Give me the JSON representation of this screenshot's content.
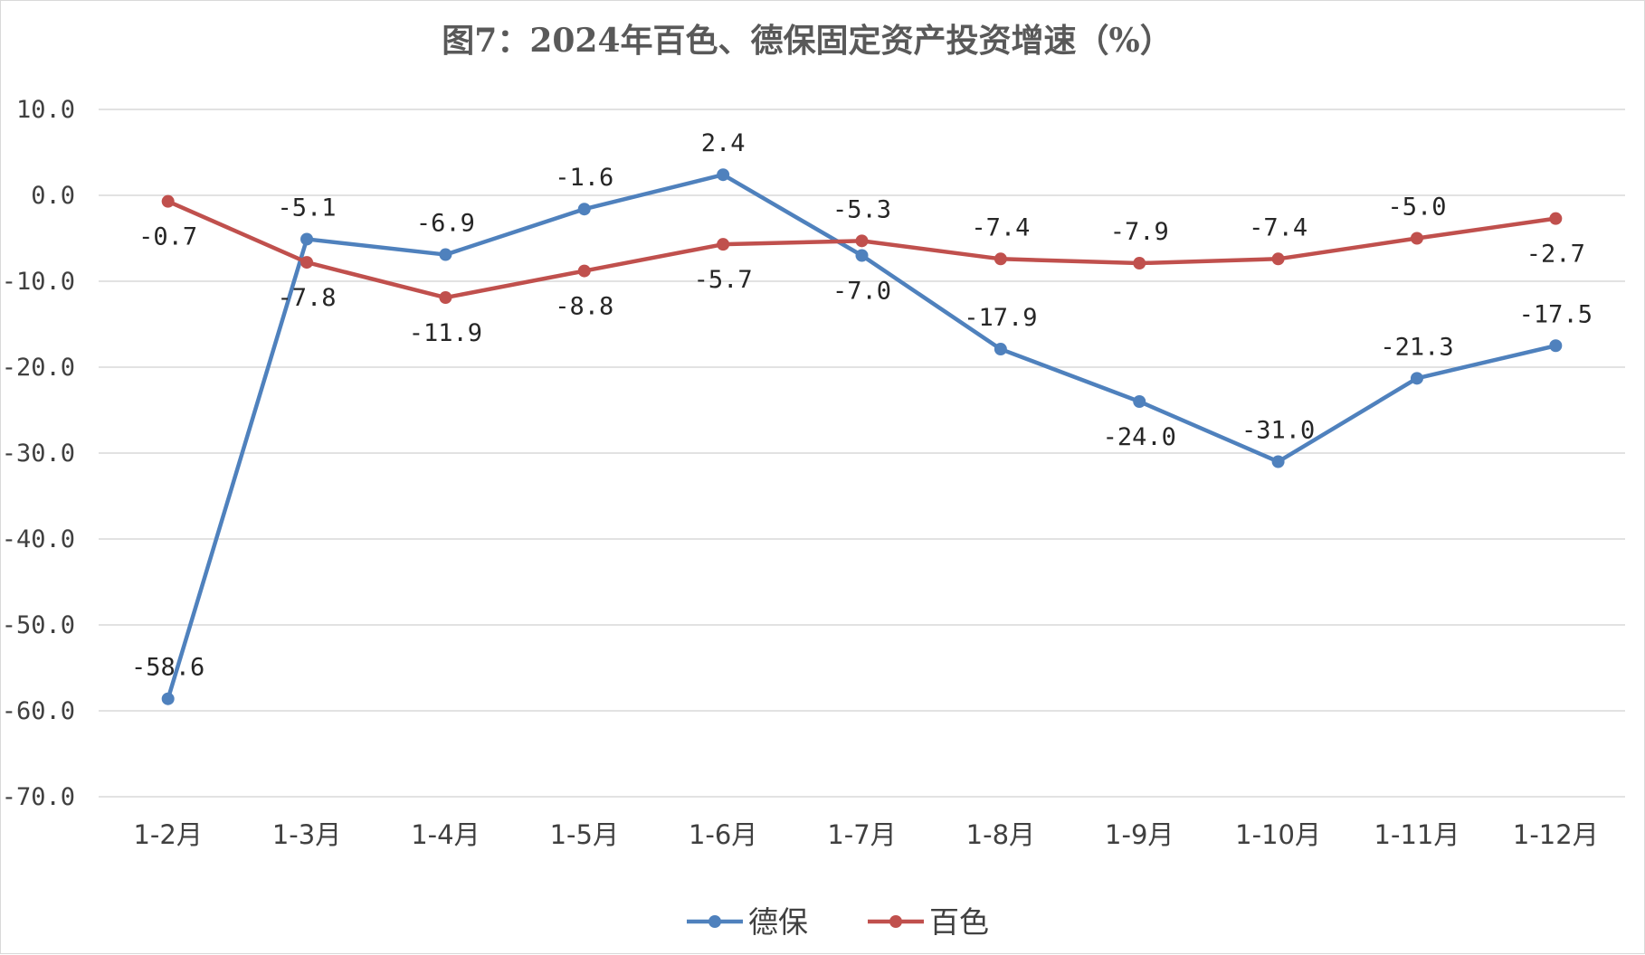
{
  "chart_data": {
    "type": "line",
    "title": "图7：2024年百色、德保固定资产投资增速（%）",
    "categories": [
      "1-2月",
      "1-3月",
      "1-4月",
      "1-5月",
      "1-6月",
      "1-7月",
      "1-8月",
      "1-9月",
      "1-10月",
      "1-11月",
      "1-12月"
    ],
    "series": [
      {
        "name": "德保",
        "color": "#4f81bd",
        "values": [
          -58.6,
          -5.1,
          -6.9,
          -1.6,
          2.4,
          -7.0,
          -17.9,
          -24.0,
          -31.0,
          -21.3,
          -17.5
        ],
        "labels": [
          "-58.6",
          "-5.1",
          "-6.9",
          "-1.6",
          "2.4",
          "-7.0",
          "-17.9",
          "-24.0",
          "-31.0",
          "-21.3",
          "-17.5"
        ]
      },
      {
        "name": "百色",
        "color": "#c0504d",
        "values": [
          -0.7,
          -7.8,
          -11.9,
          -8.8,
          -5.7,
          -5.3,
          -7.4,
          -7.9,
          -7.4,
          -5.0,
          -2.7
        ],
        "labels": [
          "-0.7",
          "-7.8",
          "-11.9",
          "-8.8",
          "-5.7",
          "-5.3",
          "-7.4",
          "-7.9",
          "-7.4",
          "-5.0",
          "-2.7"
        ]
      }
    ],
    "ylim": [
      -70,
      10
    ],
    "yticks": [
      10,
      0,
      -10,
      -20,
      -30,
      -40,
      -50,
      -60,
      -70
    ],
    "ytick_labels": [
      "10.0",
      "0.0",
      "-10.0",
      "-20.0",
      "-30.0",
      "-40.0",
      "-50.0",
      "-60.0",
      "-70.0"
    ],
    "xlabel": "",
    "ylabel": "",
    "grid": true,
    "legend_position": "bottom-center"
  }
}
